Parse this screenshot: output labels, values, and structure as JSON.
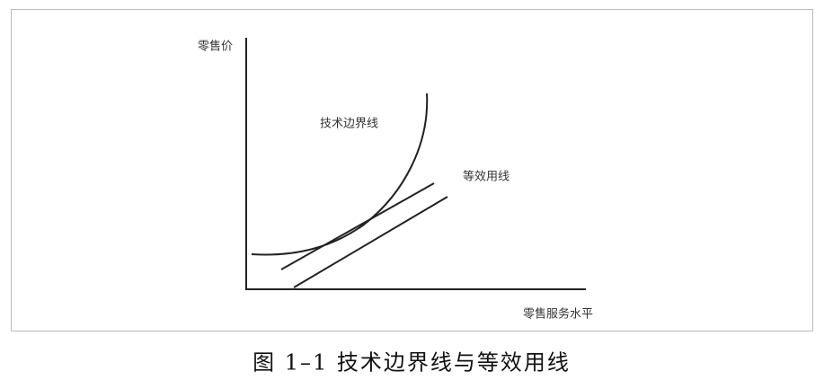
{
  "axes": {
    "y_label": "零售价",
    "x_label": "零售服务水平"
  },
  "curves": {
    "frontier_label": "技术边界线",
    "indifference_label": "等效用线"
  },
  "caption": "图 1–1 技术边界线与等效用线"
}
